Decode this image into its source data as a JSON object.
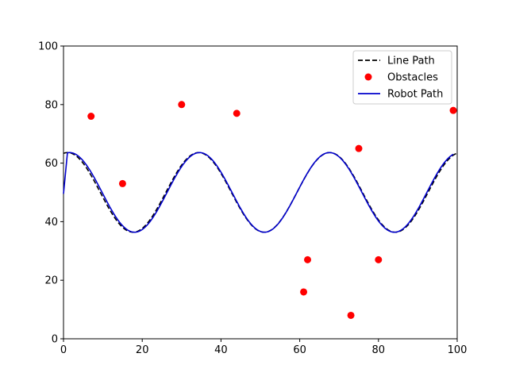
{
  "chart_data": {
    "type": "line",
    "title": "",
    "xlabel": "",
    "ylabel": "",
    "xlim": [
      0,
      100
    ],
    "ylim": [
      0,
      100
    ],
    "xticks": [
      0,
      20,
      40,
      60,
      80,
      100
    ],
    "yticks": [
      0,
      20,
      40,
      60,
      80,
      100
    ],
    "grid": false,
    "legend_position": "top-right",
    "legend": [
      "Line Path",
      "Obstacles",
      "Robot Path"
    ],
    "series": [
      {
        "name": "Line Path",
        "kind": "line",
        "style": "dashed",
        "color": "#000000",
        "model": {
          "form": "offset + amplitude * sin(2*pi*(x - phase)/period)",
          "offset": 50,
          "amplitude": 13.6,
          "period": 33.3,
          "phase": -7.3
        },
        "x_range": [
          0,
          100
        ]
      },
      {
        "name": "Obstacles",
        "kind": "scatter",
        "color": "#ff0000",
        "points": [
          {
            "x": 7,
            "y": 76
          },
          {
            "x": 15,
            "y": 53
          },
          {
            "x": 30,
            "y": 80
          },
          {
            "x": 44,
            "y": 77
          },
          {
            "x": 61,
            "y": 16
          },
          {
            "x": 62,
            "y": 27
          },
          {
            "x": 73,
            "y": 8
          },
          {
            "x": 75,
            "y": 65
          },
          {
            "x": 80,
            "y": 27
          },
          {
            "x": 99,
            "y": 78
          }
        ]
      },
      {
        "name": "Robot Path",
        "kind": "line",
        "style": "solid",
        "color": "#0000cc",
        "start": {
          "x": 0,
          "y": 49.5
        },
        "model": {
          "form": "offset + amplitude * sin(2*pi*(x - phase)/period)",
          "offset": 50,
          "amplitude": 13.6,
          "period": 33.0,
          "phase": -6.7
        },
        "x_range": [
          1,
          99
        ]
      }
    ]
  }
}
